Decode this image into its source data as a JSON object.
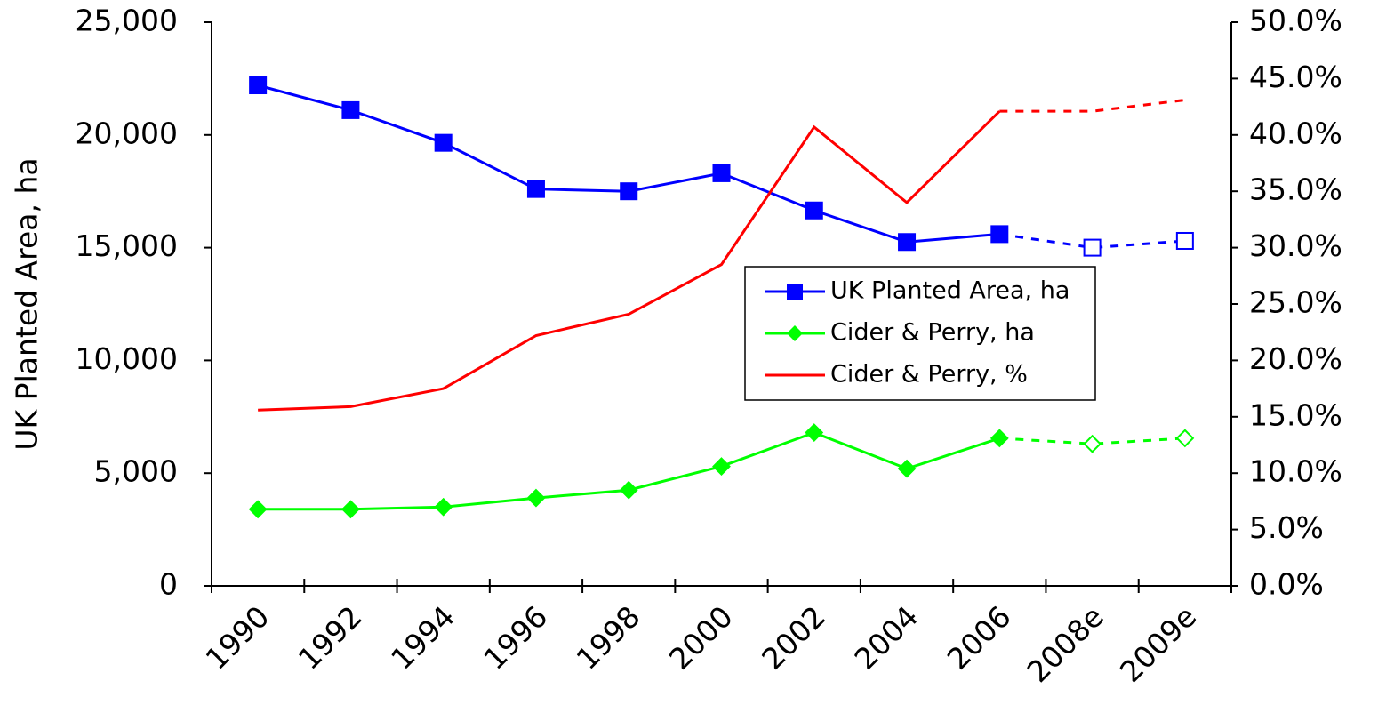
{
  "chart_data": {
    "type": "line",
    "y_label": "UK Planted Area, ha",
    "categories": [
      "1990",
      "1992",
      "1994",
      "1996",
      "1998",
      "2000",
      "2002",
      "2004",
      "2006",
      "2008e",
      "2009e"
    ],
    "series": [
      {
        "name": "UK Planted Area, ha",
        "color": "#0000ff",
        "marker": "square",
        "values": [
          22200,
          21100,
          19650,
          17600,
          17500,
          18300,
          16650,
          15250,
          15600,
          15000,
          15300
        ]
      },
      {
        "name": "Cider & Perry, ha",
        "color": "#00ff00",
        "marker": "diamond",
        "values": [
          3400,
          3400,
          3500,
          3900,
          4250,
          5300,
          6800,
          5200,
          6550,
          6300,
          6550
        ]
      },
      {
        "name": "Cider & Perry, %",
        "color": "#ff0000",
        "axis": "y2",
        "values": [
          15.6,
          15.9,
          17.5,
          22.2,
          24.1,
          28.5,
          40.7,
          34.0,
          42.1,
          42.1,
          43.1
        ]
      }
    ],
    "ylim": [
      0,
      25000
    ],
    "yticks": [
      0,
      {
        "value": 5000,
        "label": "5,000"
      },
      {
        "value": 10000,
        "label": "10,000"
      },
      {
        "value": 15000,
        "label": "15,000"
      },
      {
        "value": 20000,
        "label": "20,000"
      },
      {
        "value": 25000,
        "label": "25,000"
      }
    ],
    "y2lim": [
      0,
      50
    ],
    "y2ticks": [
      {
        "value": 0,
        "label": "0.0%"
      },
      {
        "value": 5,
        "label": "5.0%"
      },
      {
        "value": 10,
        "label": "10.0%"
      },
      {
        "value": 15,
        "label": "15.0%"
      },
      {
        "value": 20,
        "label": "20.0%"
      },
      {
        "value": 25,
        "label": "25.0%"
      },
      {
        "value": 30,
        "label": "30.0%"
      },
      {
        "value": 35,
        "label": "35.0%"
      },
      {
        "value": 40,
        "label": "40.0%"
      },
      {
        "value": 45,
        "label": "45.0%"
      },
      {
        "value": 50,
        "label": "50.0%"
      }
    ]
  }
}
